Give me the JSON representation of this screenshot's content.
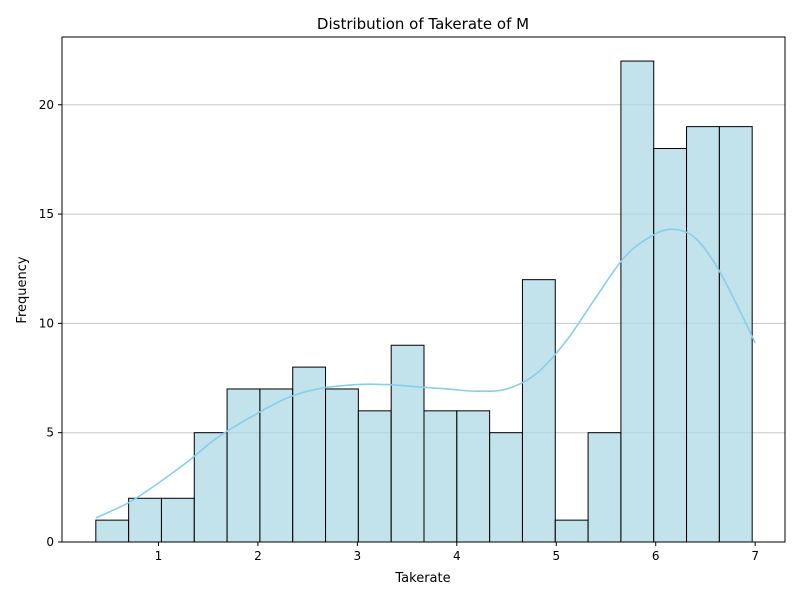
{
  "chart_data": {
    "type": "bar",
    "title": "Distribution of Takerate of M",
    "xlabel": "Takerate",
    "ylabel": "Frequency",
    "xlim": [
      0.03,
      7.3
    ],
    "ylim": [
      0,
      23.1
    ],
    "xticks": [
      1,
      2,
      3,
      4,
      5,
      6,
      7
    ],
    "yticks": [
      0,
      5,
      10,
      15,
      20
    ],
    "grid": "horizontal",
    "bar_color": "#add8e6",
    "bar_edge_color": "#000000",
    "kde_color": "#87ceeb",
    "bins": [
      {
        "x0": 0.37,
        "x1": 0.7,
        "count": 1
      },
      {
        "x0": 0.7,
        "x1": 1.03,
        "count": 2
      },
      {
        "x0": 1.03,
        "x1": 1.36,
        "count": 2
      },
      {
        "x0": 1.36,
        "x1": 1.69,
        "count": 5
      },
      {
        "x0": 1.69,
        "x1": 2.02,
        "count": 7
      },
      {
        "x0": 2.02,
        "x1": 2.35,
        "count": 7
      },
      {
        "x0": 2.35,
        "x1": 2.68,
        "count": 8
      },
      {
        "x0": 2.68,
        "x1": 3.01,
        "count": 7
      },
      {
        "x0": 3.01,
        "x1": 3.34,
        "count": 6
      },
      {
        "x0": 3.34,
        "x1": 3.67,
        "count": 9
      },
      {
        "x0": 3.67,
        "x1": 4.0,
        "count": 6
      },
      {
        "x0": 4.0,
        "x1": 4.33,
        "count": 6
      },
      {
        "x0": 4.33,
        "x1": 4.66,
        "count": 5
      },
      {
        "x0": 4.66,
        "x1": 4.99,
        "count": 12
      },
      {
        "x0": 4.99,
        "x1": 5.32,
        "count": 1
      },
      {
        "x0": 5.32,
        "x1": 5.65,
        "count": 5
      },
      {
        "x0": 5.65,
        "x1": 5.98,
        "count": 22
      },
      {
        "x0": 5.98,
        "x1": 6.31,
        "count": 18
      },
      {
        "x0": 6.31,
        "x1": 6.64,
        "count": 19
      },
      {
        "x0": 6.64,
        "x1": 6.97,
        "count": 19
      }
    ],
    "kde": {
      "x": [
        0.37,
        0.7,
        1.0,
        1.3,
        1.6,
        2.0,
        2.3,
        2.6,
        3.0,
        3.3,
        3.6,
        3.9,
        4.2,
        4.5,
        4.8,
        5.1,
        5.4,
        5.7,
        6.0,
        6.2,
        6.4,
        6.6,
        6.8,
        7.0
      ],
      "y": [
        1.1,
        1.8,
        2.7,
        3.7,
        4.8,
        5.9,
        6.6,
        7.0,
        7.2,
        7.2,
        7.1,
        7.0,
        6.9,
        7.0,
        7.7,
        9.2,
        11.2,
        13.1,
        14.1,
        14.3,
        13.9,
        12.7,
        11.0,
        9.1
      ]
    }
  }
}
